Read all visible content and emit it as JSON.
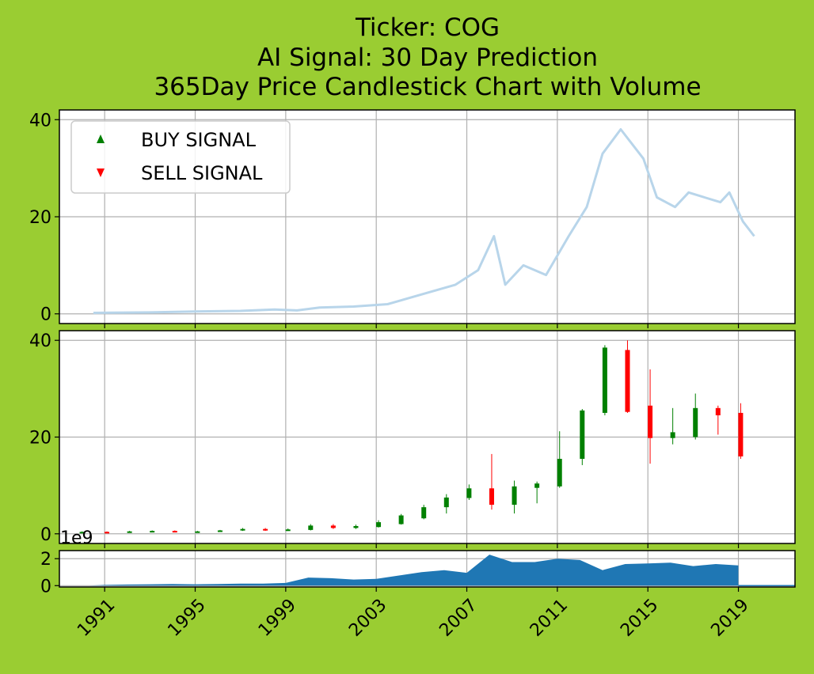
{
  "title_lines": [
    "Ticker: COG",
    "AI Signal: 30 Day Prediction",
    "365Day Price Candlestick Chart with Volume"
  ],
  "colors": {
    "background": "#9acd32",
    "price_line": "#b8d5ea",
    "up": "#008000",
    "down": "#ff0000",
    "volume": "#1f77b4",
    "grid": "#b0b0b0"
  },
  "legend": {
    "buy_label": "BUY SIGNAL",
    "sell_label": "SELL SIGNAL",
    "placement": "upper-left"
  },
  "chart_data": [
    {
      "type": "line",
      "panel": "price",
      "ylim": [
        -2,
        42
      ],
      "yticks": [
        0,
        20,
        40
      ],
      "x": [
        1990.5,
        1993,
        1995,
        1997,
        1998.5,
        1999.5,
        2000.5,
        2002,
        2003.5,
        2005,
        2006.5,
        2007.5,
        2008.2,
        2008.7,
        2009.5,
        2010.5,
        2011.5,
        2012.3,
        2013,
        2013.8,
        2014.8,
        2015.4,
        2016.2,
        2016.8,
        2017.5,
        2018.2,
        2018.6,
        2019.2,
        2019.7
      ],
      "y": [
        0.2,
        0.3,
        0.5,
        0.6,
        0.9,
        0.7,
        1.3,
        1.5,
        2.0,
        4.0,
        6.0,
        9.0,
        16.0,
        6.0,
        10.0,
        8.0,
        16.0,
        22.0,
        33.0,
        38.0,
        32.0,
        24.0,
        22.0,
        25.0,
        24.0,
        23.0,
        25.0,
        19.0,
        16.0
      ]
    },
    {
      "type": "candlestick",
      "panel": "candles",
      "ylim": [
        -2,
        42
      ],
      "yticks": [
        0,
        20,
        40
      ],
      "x": [
        1990.0,
        1991.1,
        1992.1,
        1993.1,
        1994.1,
        1995.1,
        1996.1,
        1997.1,
        1998.1,
        1999.1,
        2000.1,
        2001.1,
        2002.1,
        2003.1,
        2004.1,
        2005.1,
        2006.1,
        2007.1,
        2008.1,
        2009.1,
        2010.1,
        2011.1,
        2012.1,
        2013.1,
        2014.1,
        2015.1,
        2016.1,
        2017.1,
        2018.1,
        2019.1
      ],
      "open": [
        0.2,
        0.4,
        0.3,
        0.4,
        0.6,
        0.4,
        0.5,
        0.7,
        1.0,
        0.7,
        0.8,
        1.7,
        1.2,
        1.4,
        2.0,
        3.2,
        5.5,
        7.4,
        9.4,
        6.0,
        9.5,
        9.8,
        15.5,
        25.0,
        38.0,
        26.5,
        19.8,
        20.0,
        26.0,
        25.0
      ],
      "close": [
        0.4,
        0.3,
        0.5,
        0.6,
        0.4,
        0.5,
        0.7,
        1.0,
        0.7,
        0.9,
        1.7,
        1.2,
        1.6,
        2.4,
        3.8,
        5.5,
        7.5,
        9.4,
        6.0,
        9.8,
        10.4,
        15.5,
        25.5,
        38.5,
        25.2,
        19.8,
        21.0,
        26.0,
        24.5,
        16.0
      ],
      "high": [
        0.5,
        0.5,
        0.6,
        0.7,
        0.7,
        0.6,
        0.8,
        1.2,
        1.2,
        1.1,
        2.0,
        2.0,
        1.9,
        2.8,
        4.1,
        6.0,
        8.2,
        10.2,
        16.5,
        11.0,
        10.8,
        21.2,
        25.8,
        39.0,
        40.0,
        34.0,
        26.0,
        29.0,
        26.5,
        27.0
      ],
      "low": [
        0.1,
        0.2,
        0.2,
        0.3,
        0.3,
        0.3,
        0.4,
        0.6,
        0.6,
        0.6,
        0.7,
        1.0,
        1.0,
        1.3,
        1.9,
        3.0,
        4.2,
        7.0,
        5.0,
        4.2,
        6.3,
        9.5,
        14.2,
        24.5,
        25.0,
        14.5,
        18.5,
        19.5,
        20.5,
        15.5
      ]
    },
    {
      "type": "area",
      "panel": "volume",
      "scale_label": "1e9",
      "ylim": [
        -0.1,
        2.6
      ],
      "yticks": [
        0,
        2
      ],
      "x": [
        1990.3,
        1991,
        1992,
        1993,
        1994,
        1995,
        1996,
        1997,
        1998,
        1999,
        2000,
        2001,
        2002,
        2003,
        2004,
        2005,
        2006,
        2007,
        2008,
        2009,
        2010,
        2011,
        2012,
        2013,
        2014,
        2015,
        2016,
        2017,
        2018,
        2019
      ],
      "y": [
        0.0,
        0.05,
        0.08,
        0.1,
        0.12,
        0.1,
        0.12,
        0.15,
        0.15,
        0.2,
        0.6,
        0.55,
        0.45,
        0.5,
        0.75,
        1.0,
        1.15,
        0.95,
        2.3,
        1.75,
        1.75,
        2.0,
        1.9,
        1.15,
        1.6,
        1.65,
        1.7,
        1.45,
        1.6,
        1.5
      ]
    }
  ],
  "x_axis": {
    "xlim": [
      1989.0,
      2021.5
    ],
    "ticks": [
      {
        "value": 1991,
        "label": "1991"
      },
      {
        "value": 1995,
        "label": "1995"
      },
      {
        "value": 1999,
        "label": "1999"
      },
      {
        "value": 2003,
        "label": "2003"
      },
      {
        "value": 2007,
        "label": "2007"
      },
      {
        "value": 2011,
        "label": "2011"
      },
      {
        "value": 2015,
        "label": "2015"
      },
      {
        "value": 2019,
        "label": "2019"
      }
    ]
  }
}
